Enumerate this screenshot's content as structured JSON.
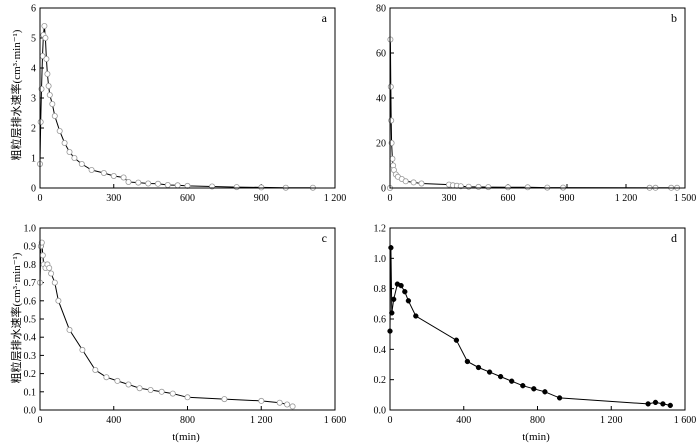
{
  "chart_data": [
    {
      "type": "line",
      "label": "a",
      "ylabel": "粗粒层排水速率(cm³·min⁻¹)",
      "xlabel": "",
      "xlim": [
        0,
        1200
      ],
      "ylim": [
        0,
        6
      ],
      "xticks": [
        0,
        300,
        600,
        900,
        1200
      ],
      "xtick_labels": [
        "0",
        "300",
        "600",
        "900",
        "1 200"
      ],
      "yticks": [
        0,
        1,
        2,
        3,
        4,
        5,
        6
      ],
      "ytick_labels": [
        "0",
        "1",
        "2",
        "3",
        "4",
        "5",
        "6"
      ],
      "marker": "open-circle",
      "series": [
        {
          "x": [
            0,
            3,
            6,
            10,
            14,
            18,
            22,
            26,
            30,
            35,
            40,
            50,
            60,
            80,
            100,
            120,
            140,
            170,
            210,
            260,
            300,
            340,
            360,
            400,
            440,
            480,
            520,
            560,
            600,
            700,
            800,
            900,
            1000,
            1110
          ],
          "y": [
            0.8,
            2.2,
            3.3,
            4.4,
            5.1,
            5.4,
            5.0,
            4.3,
            3.8,
            3.4,
            3.1,
            2.8,
            2.4,
            1.9,
            1.5,
            1.2,
            1.0,
            0.8,
            0.6,
            0.5,
            0.4,
            0.35,
            0.2,
            0.18,
            0.15,
            0.14,
            0.1,
            0.09,
            0.07,
            0.05,
            0.03,
            0.02,
            0.01,
            0.01
          ]
        }
      ]
    },
    {
      "type": "line",
      "label": "b",
      "ylabel": "",
      "xlabel": "",
      "xlim": [
        0,
        1500
      ],
      "ylim": [
        0,
        80
      ],
      "xticks": [
        0,
        300,
        600,
        900,
        1200,
        1500
      ],
      "xtick_labels": [
        "0",
        "300",
        "600",
        "900",
        "1 200",
        "1 500"
      ],
      "yticks": [
        0,
        20,
        40,
        60,
        80
      ],
      "ytick_labels": [
        "0",
        "20",
        "40",
        "60",
        "80"
      ],
      "marker": "open-circle",
      "series": [
        {
          "x": [
            0,
            2,
            4,
            6,
            8,
            12,
            16,
            20,
            30,
            40,
            60,
            80,
            120,
            160,
            300,
            320,
            340,
            360,
            400,
            450,
            500,
            600,
            700,
            800,
            880,
            1320,
            1350,
            1430,
            1460
          ],
          "y": [
            0,
            66,
            45,
            30,
            20,
            13,
            10,
            8,
            6,
            5,
            4,
            3,
            2.5,
            2,
            1.5,
            1.2,
            1.0,
            0.8,
            0.6,
            0.5,
            0.4,
            0.3,
            0.3,
            0.2,
            0.2,
            0.1,
            0.1,
            0.1,
            0.1
          ]
        }
      ]
    },
    {
      "type": "line",
      "label": "c",
      "ylabel": "粗粒层排水速率(cm³·min⁻¹)",
      "xlabel": "t(min)",
      "xlim": [
        0,
        1600
      ],
      "ylim": [
        0,
        1.0
      ],
      "xticks": [
        0,
        400,
        800,
        1200,
        1600
      ],
      "xtick_labels": [
        "0",
        "400",
        "800",
        "1 200",
        "1 600"
      ],
      "yticks": [
        0,
        0.1,
        0.2,
        0.3,
        0.4,
        0.5,
        0.6,
        0.7,
        0.8,
        0.9,
        1.0
      ],
      "ytick_labels": [
        "0.0",
        "0.1",
        "0.2",
        "0.3",
        "0.4",
        "0.5",
        "0.6",
        "0.7",
        "0.8",
        "0.9",
        "1.0"
      ],
      "marker": "open-circle",
      "series": [
        {
          "x": [
            0,
            5,
            10,
            15,
            20,
            30,
            40,
            50,
            60,
            80,
            100,
            160,
            230,
            300,
            360,
            420,
            480,
            540,
            600,
            660,
            720,
            800,
            1000,
            1200,
            1300,
            1340,
            1370
          ],
          "y": [
            0.7,
            0.9,
            0.92,
            0.85,
            0.8,
            0.78,
            0.8,
            0.78,
            0.75,
            0.7,
            0.6,
            0.44,
            0.33,
            0.22,
            0.18,
            0.16,
            0.14,
            0.12,
            0.11,
            0.1,
            0.09,
            0.07,
            0.06,
            0.05,
            0.04,
            0.03,
            0.02
          ]
        }
      ]
    },
    {
      "type": "line",
      "label": "d",
      "ylabel": "",
      "xlabel": "t(min)",
      "xlim": [
        0,
        1600
      ],
      "ylim": [
        0,
        1.2
      ],
      "xticks": [
        0,
        400,
        800,
        1200,
        1600
      ],
      "xtick_labels": [
        "0",
        "400",
        "800",
        "1 200",
        "1 600"
      ],
      "yticks": [
        0,
        0.2,
        0.4,
        0.6,
        0.8,
        1.0,
        1.2
      ],
      "ytick_labels": [
        "0.0",
        "0.2",
        "0.4",
        "0.6",
        "0.8",
        "1.0",
        "1.2"
      ],
      "marker": "filled-circle",
      "series": [
        {
          "x": [
            0,
            5,
            10,
            20,
            40,
            60,
            80,
            100,
            140,
            360,
            420,
            480,
            540,
            600,
            660,
            720,
            780,
            840,
            920,
            1400,
            1440,
            1480,
            1520
          ],
          "y": [
            0.52,
            1.07,
            0.64,
            0.73,
            0.83,
            0.82,
            0.78,
            0.72,
            0.62,
            0.46,
            0.32,
            0.28,
            0.25,
            0.22,
            0.19,
            0.16,
            0.14,
            0.12,
            0.08,
            0.04,
            0.05,
            0.04,
            0.03
          ]
        }
      ]
    }
  ]
}
